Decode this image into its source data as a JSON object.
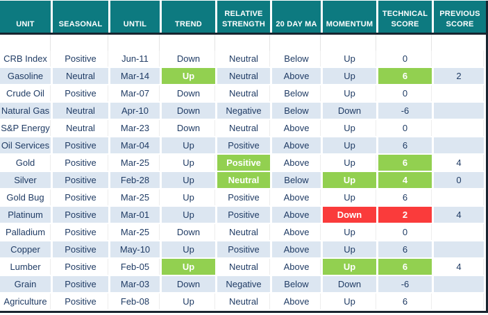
{
  "colors": {
    "header_bg": "#0D7A80",
    "header_text": "#FFFFFF",
    "body_text": "#1F3B64",
    "row_alt_bg": "#DCE6F1",
    "row_bg": "#FFFFFF",
    "highlight_green": "#92D050",
    "highlight_red": "#FA3B3B",
    "dark_border": "#18242F"
  },
  "chart_data": {
    "type": "table",
    "columns": [
      "UNIT",
      "SEASONAL",
      "UNTIL",
      "TREND",
      "RELATIVE STRENGTH",
      "20 DAY MA",
      "MOMENTUM",
      "TECHNICAL SCORE",
      "PREVIOUS SCORE"
    ],
    "rows": [
      {
        "cells": [
          "CRB Index",
          "Positive",
          "Jun-11",
          "Down",
          "Neutral",
          "Below",
          "Up",
          "0",
          ""
        ],
        "highlights": [
          "",
          "",
          "",
          "",
          "",
          "",
          "",
          "",
          ""
        ]
      },
      {
        "cells": [
          "Gasoline",
          "Neutral",
          "Mar-14",
          "Up",
          "Neutral",
          "Above",
          "Up",
          "6",
          "2"
        ],
        "highlights": [
          "",
          "",
          "",
          "green",
          "",
          "",
          "",
          "green",
          ""
        ]
      },
      {
        "cells": [
          "Crude Oil",
          "Positive",
          "Mar-07",
          "Down",
          "Neutral",
          "Below",
          "Up",
          "0",
          ""
        ],
        "highlights": [
          "",
          "",
          "",
          "",
          "",
          "",
          "",
          "",
          ""
        ]
      },
      {
        "cells": [
          "Natural Gas",
          "Neutral",
          "Apr-10",
          "Down",
          "Negative",
          "Below",
          "Down",
          "-6",
          ""
        ],
        "highlights": [
          "",
          "",
          "",
          "",
          "",
          "",
          "",
          "",
          ""
        ]
      },
      {
        "cells": [
          "S&P Energy",
          "Neutral",
          "Mar-23",
          "Down",
          "Neutral",
          "Above",
          "Up",
          "0",
          ""
        ],
        "highlights": [
          "",
          "",
          "",
          "",
          "",
          "",
          "",
          "",
          ""
        ]
      },
      {
        "cells": [
          "Oil Services",
          "Positive",
          "Mar-04",
          "Up",
          "Positive",
          "Above",
          "Up",
          "6",
          ""
        ],
        "highlights": [
          "",
          "",
          "",
          "",
          "",
          "",
          "",
          "",
          ""
        ]
      },
      {
        "cells": [
          "Gold",
          "Positive",
          "Mar-25",
          "Up",
          "Positive",
          "Above",
          "Up",
          "6",
          "4"
        ],
        "highlights": [
          "",
          "",
          "",
          "",
          "green",
          "",
          "",
          "green",
          ""
        ]
      },
      {
        "cells": [
          "Silver",
          "Positive",
          "Feb-28",
          "Up",
          "Neutral",
          "Below",
          "Up",
          "4",
          "0"
        ],
        "highlights": [
          "",
          "",
          "",
          "",
          "green",
          "",
          "green",
          "green",
          ""
        ]
      },
      {
        "cells": [
          "Gold Bug",
          "Positive",
          "Mar-25",
          "Up",
          "Positive",
          "Above",
          "Up",
          "6",
          ""
        ],
        "highlights": [
          "",
          "",
          "",
          "",
          "",
          "",
          "",
          "",
          ""
        ]
      },
      {
        "cells": [
          "Platinum",
          "Positive",
          "Mar-01",
          "Up",
          "Positive",
          "Above",
          "Down",
          "2",
          "4"
        ],
        "highlights": [
          "",
          "",
          "",
          "",
          "",
          "",
          "red",
          "red",
          ""
        ]
      },
      {
        "cells": [
          "Palladium",
          "Positive",
          "Mar-25",
          "Down",
          "Neutral",
          "Above",
          "Up",
          "0",
          ""
        ],
        "highlights": [
          "",
          "",
          "",
          "",
          "",
          "",
          "",
          "",
          ""
        ]
      },
      {
        "cells": [
          "Copper",
          "Positive",
          "May-10",
          "Up",
          "Positive",
          "Above",
          "Up",
          "6",
          ""
        ],
        "highlights": [
          "",
          "",
          "",
          "",
          "",
          "",
          "",
          "",
          ""
        ]
      },
      {
        "cells": [
          "Lumber",
          "Positive",
          "Feb-05",
          "Up",
          "Neutral",
          "Above",
          "Up",
          "6",
          "4"
        ],
        "highlights": [
          "",
          "",
          "",
          "green",
          "",
          "",
          "green",
          "green",
          ""
        ]
      },
      {
        "cells": [
          "Grain",
          "Positive",
          "Mar-03",
          "Down",
          "Negative",
          "Below",
          "Down",
          "-6",
          ""
        ],
        "highlights": [
          "",
          "",
          "",
          "",
          "",
          "",
          "",
          "",
          ""
        ]
      },
      {
        "cells": [
          "Agriculture",
          "Positive",
          "Feb-08",
          "Up",
          "Neutral",
          "Above",
          "Up",
          "6",
          ""
        ],
        "highlights": [
          "",
          "",
          "",
          "",
          "",
          "",
          "",
          "",
          ""
        ]
      }
    ]
  }
}
